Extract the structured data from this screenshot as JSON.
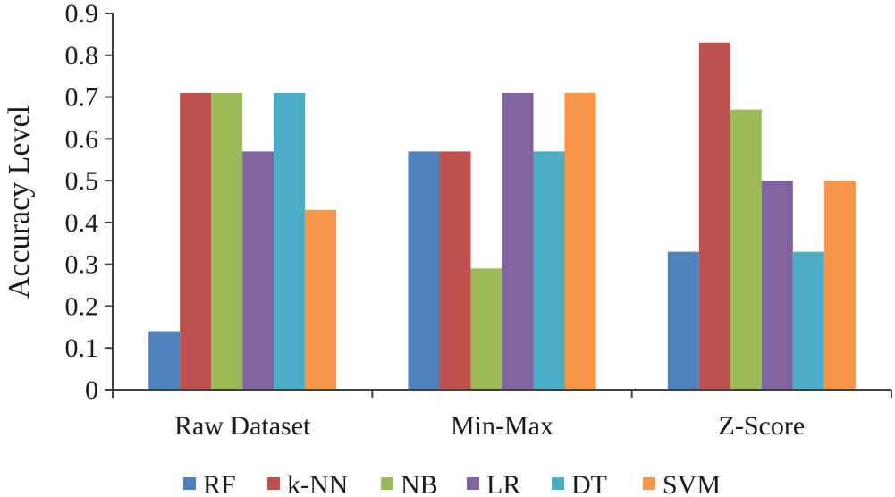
{
  "chart_data": {
    "type": "bar",
    "title": "",
    "xlabel": "",
    "ylabel": "Accuracy Level",
    "ylim": [
      0,
      0.9
    ],
    "yticks": [
      "0",
      "0.1",
      "0.2",
      "0.3",
      "0.4",
      "0.5",
      "0.6",
      "0.7",
      "0.8",
      "0.9"
    ],
    "grid": false,
    "legend_position": "bottom",
    "categories": [
      "Raw Dataset",
      "Min-Max",
      "Z-Score"
    ],
    "series": [
      {
        "name": "RF",
        "color": "#4F81BD",
        "values": [
          0.14,
          0.57,
          0.33
        ]
      },
      {
        "name": "k-NN",
        "color": "#C0504D",
        "values": [
          0.71,
          0.57,
          0.83
        ]
      },
      {
        "name": "NB",
        "color": "#9BBB59",
        "values": [
          0.71,
          0.29,
          0.67
        ]
      },
      {
        "name": "LR",
        "color": "#8064A2",
        "values": [
          0.57,
          0.71,
          0.5
        ]
      },
      {
        "name": "DT",
        "color": "#4BACC6",
        "values": [
          0.71,
          0.57,
          0.33
        ]
      },
      {
        "name": "SVM",
        "color": "#F79646",
        "values": [
          0.43,
          0.71,
          0.5
        ]
      }
    ]
  }
}
